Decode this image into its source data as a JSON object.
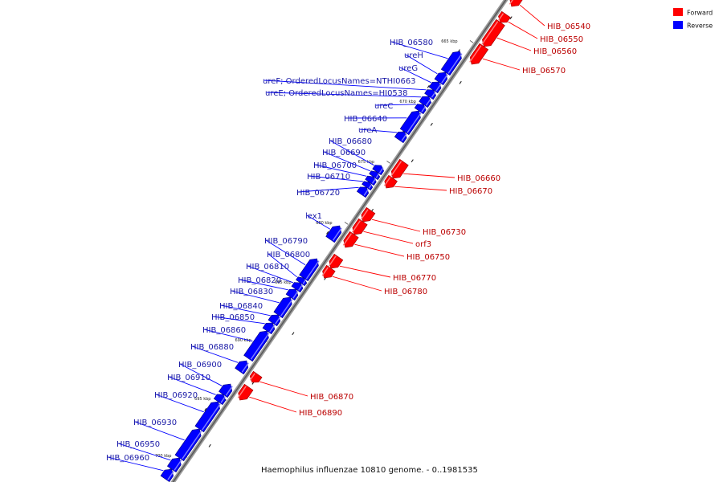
{
  "caption": "Haemophilus influenzae 10810 genome. - 0..1981535",
  "legend": [
    {
      "label": "Forward",
      "color": "#ff0000"
    },
    {
      "label": "Reverse",
      "color": "#0000ff"
    }
  ],
  "colors": {
    "forward": "#ff0000",
    "forward_label": "#bb0000",
    "reverse": "#0000ff",
    "reverse_label": "#1a1aa6",
    "axis": "#6e6e6e"
  },
  "ticks": [
    {
      "label": "665 kbp",
      "kbp": 665
    },
    {
      "label": "670 kbp",
      "kbp": 670
    },
    {
      "label": "675 kbp",
      "kbp": 675
    },
    {
      "label": "680 kbp",
      "kbp": 680
    },
    {
      "label": "685 kbp",
      "kbp": 685
    },
    {
      "label": "690 kbp",
      "kbp": 690
    },
    {
      "label": "695 kbp",
      "kbp": 695
    },
    {
      "label": "700 kbp",
      "kbp": 700
    }
  ],
  "genes": [
    {
      "name": "HIB_06540",
      "strand": "forward"
    },
    {
      "name": "HIB_06550",
      "strand": "forward"
    },
    {
      "name": "HIB_06560",
      "strand": "forward"
    },
    {
      "name": "HIB_06570",
      "strand": "forward"
    },
    {
      "name": "HIB_06580",
      "strand": "reverse"
    },
    {
      "name": "ureH",
      "strand": "reverse"
    },
    {
      "name": "ureG",
      "strand": "reverse"
    },
    {
      "name": "ureF; OrderedLocusNames=NTHI0663",
      "strand": "reverse"
    },
    {
      "name": "ureE; OrderedLocusNames=HI0538",
      "strand": "reverse"
    },
    {
      "name": "ureC",
      "strand": "reverse"
    },
    {
      "name": "HIB_06640",
      "strand": "reverse"
    },
    {
      "name": "ureA",
      "strand": "reverse"
    },
    {
      "name": "HIB_06660",
      "strand": "forward"
    },
    {
      "name": "HIB_06670",
      "strand": "forward"
    },
    {
      "name": "HIB_06680",
      "strand": "reverse"
    },
    {
      "name": "HIB_06690",
      "strand": "reverse"
    },
    {
      "name": "HIB_06700",
      "strand": "reverse"
    },
    {
      "name": "HIB_06710",
      "strand": "reverse"
    },
    {
      "name": "HIB_06720",
      "strand": "reverse"
    },
    {
      "name": "lex1",
      "strand": "reverse"
    },
    {
      "name": "HIB_06730",
      "strand": "forward"
    },
    {
      "name": "orf3",
      "strand": "forward"
    },
    {
      "name": "HIB_06750",
      "strand": "forward"
    },
    {
      "name": "HIB_06770",
      "strand": "forward"
    },
    {
      "name": "HIB_06780",
      "strand": "forward"
    },
    {
      "name": "HIB_06790",
      "strand": "reverse"
    },
    {
      "name": "HIB_06800",
      "strand": "reverse"
    },
    {
      "name": "HIB_06810",
      "strand": "reverse"
    },
    {
      "name": "HIB_06820",
      "strand": "reverse"
    },
    {
      "name": "HIB_06830",
      "strand": "reverse"
    },
    {
      "name": "HIB_06840",
      "strand": "reverse"
    },
    {
      "name": "HIB_06850",
      "strand": "reverse"
    },
    {
      "name": "HIB_06860",
      "strand": "reverse"
    },
    {
      "name": "HIB_06880",
      "strand": "reverse"
    },
    {
      "name": "HIB_06870",
      "strand": "forward"
    },
    {
      "name": "HIB_06890",
      "strand": "forward"
    },
    {
      "name": "HIB_06900",
      "strand": "reverse"
    },
    {
      "name": "HIB_06910",
      "strand": "reverse"
    },
    {
      "name": "HIB_06920",
      "strand": "reverse"
    },
    {
      "name": "HIB_06930",
      "strand": "reverse"
    },
    {
      "name": "HIB_06950",
      "strand": "reverse"
    },
    {
      "name": "HIB_06960",
      "strand": "reverse"
    }
  ]
}
